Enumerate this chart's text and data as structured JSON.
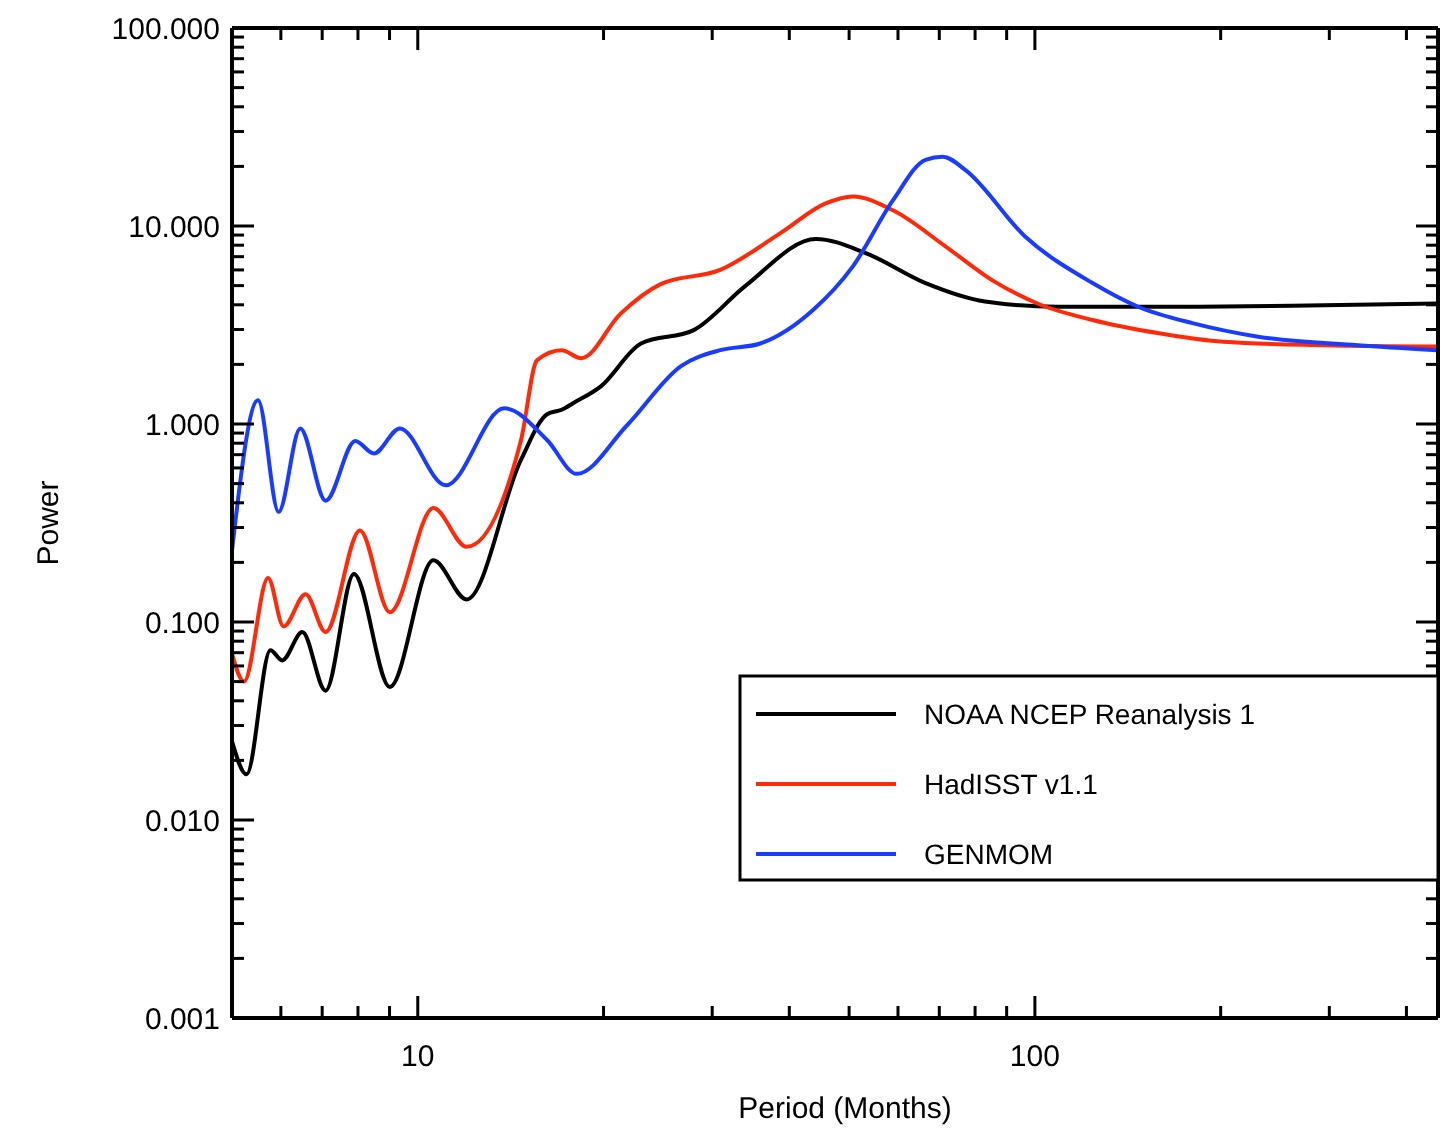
{
  "chart_data": {
    "type": "line",
    "xlabel": "Period (Months)",
    "ylabel": "Power",
    "log": "xy",
    "xlim": [
      5,
      450
    ],
    "ylim": [
      0.001,
      100
    ],
    "xticks": [
      {
        "value": 6,
        "label": null
      },
      {
        "value": 7,
        "label": null
      },
      {
        "value": 8,
        "label": null
      },
      {
        "value": 9,
        "label": null
      },
      10,
      {
        "value": 20,
        "label": null
      },
      {
        "value": 30,
        "label": null
      },
      {
        "value": 40,
        "label": null
      },
      {
        "value": 50,
        "label": null
      },
      {
        "value": 60,
        "label": null
      },
      {
        "value": 70,
        "label": null
      },
      {
        "value": 80,
        "label": null
      },
      {
        "value": 90,
        "label": null
      },
      100,
      {
        "value": 200,
        "label": null
      },
      {
        "value": 300,
        "label": null
      },
      {
        "value": 400,
        "label": null
      }
    ],
    "yticks": [
      {
        "value": 0.001,
        "label": "0.001"
      },
      {
        "value": 0.002,
        "label": null
      },
      {
        "value": 0.003,
        "label": null
      },
      {
        "value": 0.004,
        "label": null
      },
      {
        "value": 0.005,
        "label": null
      },
      {
        "value": 0.006,
        "label": null
      },
      {
        "value": 0.007,
        "label": null
      },
      {
        "value": 0.008,
        "label": null
      },
      {
        "value": 0.009,
        "label": null
      },
      {
        "value": 0.01,
        "label": "0.010"
      },
      {
        "value": 0.02,
        "label": null
      },
      {
        "value": 0.03,
        "label": null
      },
      {
        "value": 0.04,
        "label": null
      },
      {
        "value": 0.05,
        "label": null
      },
      {
        "value": 0.06,
        "label": null
      },
      {
        "value": 0.07,
        "label": null
      },
      {
        "value": 0.08,
        "label": null
      },
      {
        "value": 0.09,
        "label": null
      },
      {
        "value": 0.1,
        "label": "0.100"
      },
      {
        "value": 0.2,
        "label": null
      },
      {
        "value": 0.3,
        "label": null
      },
      {
        "value": 0.4,
        "label": null
      },
      {
        "value": 0.5,
        "label": null
      },
      {
        "value": 0.6,
        "label": null
      },
      {
        "value": 0.7,
        "label": null
      },
      {
        "value": 0.8,
        "label": null
      },
      {
        "value": 0.9,
        "label": null
      },
      {
        "value": 1,
        "label": "1.000"
      },
      {
        "value": 2,
        "label": null
      },
      {
        "value": 3,
        "label": null
      },
      {
        "value": 4,
        "label": null
      },
      {
        "value": 5,
        "label": null
      },
      {
        "value": 6,
        "label": null
      },
      {
        "value": 7,
        "label": null
      },
      {
        "value": 8,
        "label": null
      },
      {
        "value": 9,
        "label": null
      },
      {
        "value": 10,
        "label": "10.000"
      },
      {
        "value": 20,
        "label": null
      },
      {
        "value": 30,
        "label": null
      },
      {
        "value": 40,
        "label": null
      },
      {
        "value": 50,
        "label": null
      },
      {
        "value": 60,
        "label": null
      },
      {
        "value": 70,
        "label": null
      },
      {
        "value": 80,
        "label": null
      },
      {
        "value": 90,
        "label": null
      },
      {
        "value": 100,
        "label": "100.000"
      }
    ],
    "grid": false,
    "legend": "bottom right",
    "marker": "none",
    "line_style": "solid",
    "series": [
      {
        "name": "NOAA NCEP Reanalysis 1",
        "color": "#000000",
        "x": [
          5.0,
          5.28,
          5.77,
          6.03,
          6.5,
          7.09,
          7.88,
          9.01,
          10.6,
          12.0,
          14.7,
          16.2,
          17.1,
          17.9,
          19.8,
          23.0,
          28.0,
          34.0,
          44.2,
          53.2,
          66.5,
          83.0,
          109,
          159,
          261,
          448
        ],
        "values": [
          0.025,
          0.017,
          0.072,
          0.064,
          0.089,
          0.045,
          0.175,
          0.047,
          0.205,
          0.13,
          0.66,
          1.12,
          1.18,
          1.28,
          1.55,
          2.55,
          2.98,
          5.0,
          8.6,
          7.3,
          5.15,
          4.16,
          3.91,
          3.91,
          3.95,
          4.06
        ]
      },
      {
        "name": "HadISST v1.1",
        "color": "#ff2a0a",
        "x": [
          5.0,
          5.23,
          5.72,
          6.06,
          6.58,
          7.09,
          8.06,
          9.01,
          10.6,
          12.0,
          14.7,
          15.6,
          17.1,
          18.4,
          21.3,
          24.8,
          30.9,
          38.7,
          45.8,
          50.7,
          58.9,
          71.6,
          85.5,
          101,
          124,
          159,
          202,
          294,
          448
        ],
        "values": [
          0.069,
          0.05,
          0.167,
          0.095,
          0.138,
          0.089,
          0.29,
          0.112,
          0.376,
          0.24,
          0.83,
          2.1,
          2.36,
          2.15,
          3.6,
          5.1,
          6.0,
          9.2,
          13,
          14.1,
          12.0,
          7.9,
          5.3,
          4.06,
          3.35,
          2.87,
          2.6,
          2.5,
          2.46
        ]
      },
      {
        "name": "GENMOM",
        "color": "#1a3cff",
        "x": [
          5.0,
          5.51,
          5.95,
          6.45,
          7.09,
          7.92,
          8.49,
          9.35,
          11.1,
          13.8,
          16.2,
          18.1,
          21.8,
          26.7,
          30.9,
          35.9,
          43.7,
          50.7,
          58.9,
          66.5,
          70.9,
          77.1,
          96.4,
          124,
          147,
          180,
          230,
          333,
          448
        ],
        "values": [
          0.23,
          1.32,
          0.36,
          0.95,
          0.41,
          0.82,
          0.71,
          0.95,
          0.49,
          1.2,
          0.83,
          0.56,
          0.98,
          1.96,
          2.36,
          2.55,
          3.76,
          6.25,
          13.5,
          21.6,
          22.4,
          19.2,
          8.85,
          5.15,
          3.91,
          3.23,
          2.76,
          2.5,
          2.36
        ]
      }
    ]
  }
}
